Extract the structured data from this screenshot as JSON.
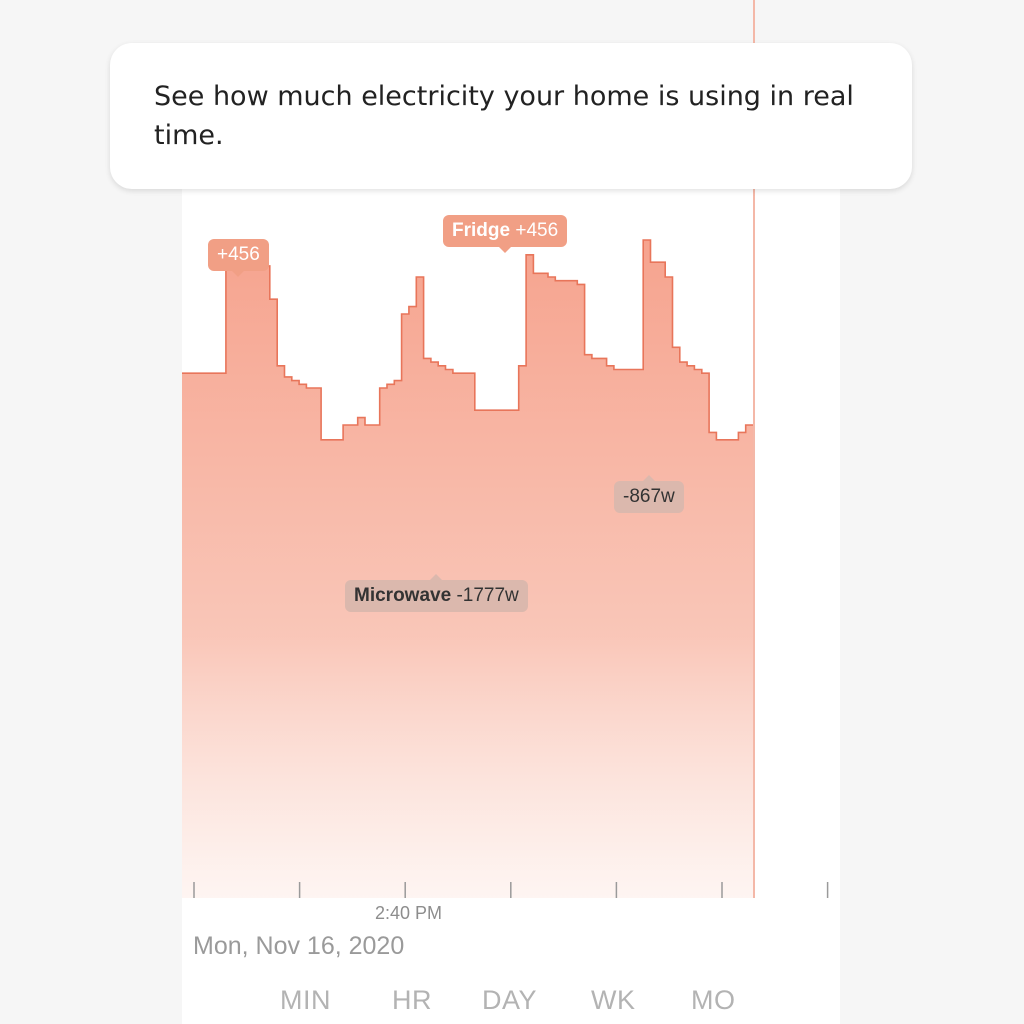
{
  "tooltip": {
    "text": "See how much electricity your home is using in real time."
  },
  "annotations": [
    {
      "name": "",
      "value": "+456",
      "kind": "positive"
    },
    {
      "name": "Fridge",
      "value": "+456",
      "kind": "positive"
    },
    {
      "name": "Microwave",
      "value": "-1777w",
      "kind": "negative"
    },
    {
      "name": "",
      "value": "-867w",
      "kind": "negative"
    }
  ],
  "axis": {
    "time_label": "2:40 PM",
    "date_label": "Mon, Nov 16, 2020"
  },
  "ranges": [
    "MIN",
    "HR",
    "DAY",
    "WK",
    "MO"
  ],
  "colors": {
    "area": "#f6a38e",
    "area_stroke": "#e8755a",
    "positive_badge": "#f19f85",
    "negative_badge": "#dbb8ad",
    "now_line": "#f4b8a8"
  },
  "chart_data": {
    "type": "area",
    "title": "",
    "xlabel": "",
    "ylabel": "",
    "x_tick_labels": [
      "2:40 PM"
    ],
    "y_range_relative": [
      0,
      1
    ],
    "series": [
      {
        "values": [
          0.64,
          0.64,
          0.64,
          0.64,
          0.64,
          0.64,
          1.0,
          0.93,
          0.92,
          0.94,
          0.93,
          0.93,
          0.84,
          0.66,
          0.63,
          0.62,
          0.61,
          0.6,
          0.6,
          0.46,
          0.46,
          0.46,
          0.5,
          0.5,
          0.52,
          0.5,
          0.5,
          0.6,
          0.61,
          0.62,
          0.8,
          0.82,
          0.9,
          0.68,
          0.67,
          0.66,
          0.65,
          0.64,
          0.64,
          0.64,
          0.54,
          0.54,
          0.54,
          0.54,
          0.54,
          0.54,
          0.66,
          0.96,
          0.91,
          0.91,
          0.9,
          0.89,
          0.89,
          0.89,
          0.88,
          0.69,
          0.68,
          0.68,
          0.66,
          0.65,
          0.65,
          0.65,
          0.65,
          1.0,
          0.94,
          0.94,
          0.9,
          0.71,
          0.67,
          0.66,
          0.65,
          0.64,
          0.48,
          0.46,
          0.46,
          0.46,
          0.48,
          0.5
        ]
      }
    ]
  }
}
